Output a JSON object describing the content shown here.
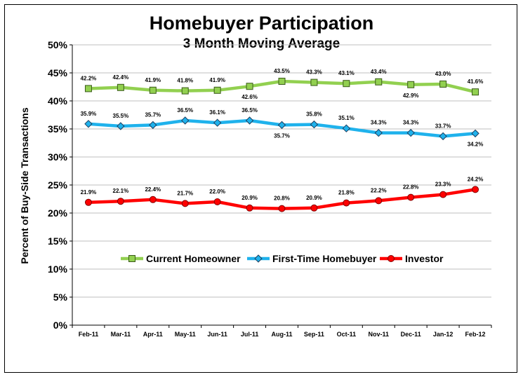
{
  "chart_data": {
    "type": "line",
    "title": "Homebuyer Participation",
    "subtitle": "3 Month Moving Average",
    "xlabel": "",
    "ylabel": "Percent of Buy-Side Transactions",
    "ylim": [
      0,
      50
    ],
    "yticks": [
      "0%",
      "5%",
      "10%",
      "15%",
      "20%",
      "25%",
      "30%",
      "35%",
      "40%",
      "45%",
      "50%"
    ],
    "grid": true,
    "legend_position": "middle",
    "categories": [
      "Feb-11",
      "Mar-11",
      "Apr-11",
      "May-11",
      "Jun-11",
      "Jul-11",
      "Aug-11",
      "Sep-11",
      "Oct-11",
      "Nov-11",
      "Dec-11",
      "Jan-12",
      "Feb-12"
    ],
    "series": [
      {
        "name": "Current Homeowner",
        "color": "#92D050",
        "marker": "square",
        "values": [
          42.2,
          42.4,
          41.9,
          41.8,
          41.9,
          42.6,
          43.5,
          43.3,
          43.1,
          43.4,
          42.9,
          43.0,
          41.6
        ],
        "labels": [
          "42.2%",
          "42.4%",
          "41.9%",
          "41.8%",
          "41.9%",
          "42.6%",
          "43.5%",
          "43.3%",
          "43.1%",
          "43.4%",
          "42.9%",
          "43.0%",
          "41.6%"
        ],
        "label_below": [
          false,
          false,
          false,
          false,
          false,
          true,
          false,
          false,
          false,
          false,
          true,
          false,
          false
        ]
      },
      {
        "name": "First-Time Homebuyer",
        "color": "#1FB2EC",
        "marker": "diamond",
        "values": [
          35.9,
          35.5,
          35.7,
          36.5,
          36.1,
          36.5,
          35.7,
          35.8,
          35.1,
          34.3,
          34.3,
          33.7,
          34.2
        ],
        "labels": [
          "35.9%",
          "35.5%",
          "35.7%",
          "36.5%",
          "36.1%",
          "36.5%",
          "35.7%",
          "35.8%",
          "35.1%",
          "34.3%",
          "34.3%",
          "33.7%",
          "34.2%"
        ],
        "label_below": [
          false,
          false,
          false,
          false,
          false,
          false,
          true,
          false,
          false,
          false,
          false,
          false,
          true
        ]
      },
      {
        "name": "Investor",
        "color": "#FF0000",
        "marker": "circle",
        "values": [
          21.9,
          22.1,
          22.4,
          21.7,
          22.0,
          20.9,
          20.8,
          20.9,
          21.8,
          22.2,
          22.8,
          23.3,
          24.2
        ],
        "labels": [
          "21.9%",
          "22.1%",
          "22.4%",
          "21.7%",
          "22.0%",
          "20.9%",
          "20.8%",
          "20.9%",
          "21.8%",
          "22.2%",
          "22.8%",
          "23.3%",
          "24.2%"
        ],
        "label_below": [
          false,
          false,
          false,
          false,
          false,
          false,
          false,
          false,
          false,
          false,
          false,
          false,
          false
        ]
      }
    ]
  }
}
